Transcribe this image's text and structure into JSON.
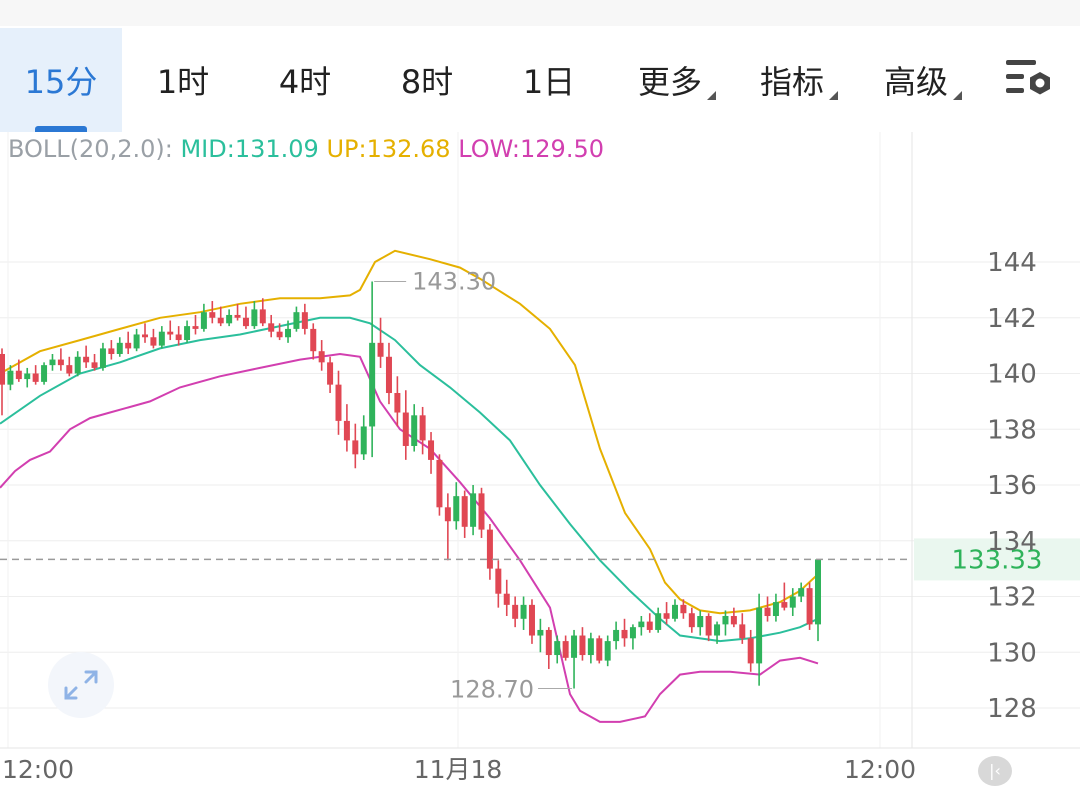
{
  "tabs": [
    {
      "label": "15分",
      "active": true
    },
    {
      "label": "1时",
      "active": false
    },
    {
      "label": "4时",
      "active": false
    },
    {
      "label": "8时",
      "active": false
    },
    {
      "label": "1日",
      "active": false
    }
  ],
  "menus": [
    "更多",
    "指标",
    "高级"
  ],
  "indicator": {
    "name": "BOLL(20,2.0):",
    "mid": "MID:131.09",
    "up": "UP:132.68",
    "low": "LOW:129.50"
  },
  "colors": {
    "up_candle": "#2fb35b",
    "down_candle": "#e04753",
    "mid_line": "#2bbf9c",
    "upper_band": "#e5b000",
    "lower_band": "#d23fb0",
    "price_tag": "#2fb35b",
    "accent": "#2b78d4"
  },
  "chart_data": {
    "type": "candlestick",
    "y_ticks": [
      "144",
      "142",
      "140",
      "138",
      "136",
      "134",
      "132",
      "130",
      "128"
    ],
    "ylim": [
      127.0,
      145.0
    ],
    "x_tick_labels": [
      "12:00",
      "11月18",
      "12:00"
    ],
    "grid": true,
    "current_price": "133.33",
    "high_label": "143.30",
    "low_label": "128.70",
    "high_value": 143.3,
    "low_value": 128.7,
    "candles": [
      [
        140.7,
        140.9,
        138.5,
        139.6
      ],
      [
        139.6,
        140.3,
        139.4,
        140.1
      ],
      [
        140.1,
        140.5,
        139.7,
        139.8
      ],
      [
        139.8,
        140.2,
        139.5,
        140.0
      ],
      [
        140.0,
        140.3,
        139.6,
        139.7
      ],
      [
        139.7,
        140.4,
        139.6,
        140.3
      ],
      [
        140.3,
        140.7,
        140.1,
        140.5
      ],
      [
        140.5,
        140.9,
        140.1,
        140.3
      ],
      [
        140.3,
        140.6,
        139.9,
        140.0
      ],
      [
        140.0,
        140.8,
        139.9,
        140.6
      ],
      [
        140.6,
        141.0,
        140.2,
        140.4
      ],
      [
        140.4,
        140.7,
        140.1,
        140.2
      ],
      [
        140.2,
        141.1,
        140.1,
        140.9
      ],
      [
        140.9,
        141.2,
        140.5,
        140.7
      ],
      [
        140.7,
        141.3,
        140.6,
        141.1
      ],
      [
        141.1,
        141.5,
        140.7,
        140.9
      ],
      [
        140.9,
        141.6,
        140.8,
        141.4
      ],
      [
        141.4,
        141.8,
        141.1,
        141.3
      ],
      [
        141.3,
        141.6,
        140.9,
        141.0
      ],
      [
        141.0,
        141.7,
        140.9,
        141.5
      ],
      [
        141.5,
        141.9,
        141.2,
        141.4
      ],
      [
        141.4,
        141.7,
        141.0,
        141.2
      ],
      [
        141.2,
        141.9,
        141.1,
        141.7
      ],
      [
        141.7,
        142.1,
        141.4,
        141.6
      ],
      [
        141.6,
        142.5,
        141.5,
        142.2
      ],
      [
        142.2,
        142.6,
        141.8,
        142.0
      ],
      [
        142.0,
        142.4,
        141.7,
        141.8
      ],
      [
        141.8,
        142.3,
        141.7,
        142.1
      ],
      [
        142.1,
        142.5,
        141.9,
        142.0
      ],
      [
        142.0,
        142.4,
        141.6,
        141.7
      ],
      [
        141.7,
        142.6,
        141.6,
        142.3
      ],
      [
        142.3,
        142.7,
        141.7,
        141.8
      ],
      [
        141.8,
        142.1,
        141.3,
        141.5
      ],
      [
        141.5,
        141.8,
        141.2,
        141.3
      ],
      [
        141.3,
        141.9,
        141.1,
        141.6
      ],
      [
        141.6,
        142.4,
        141.5,
        142.2
      ],
      [
        142.2,
        142.5,
        141.4,
        141.6
      ],
      [
        141.6,
        141.8,
        140.5,
        140.8
      ],
      [
        140.8,
        141.2,
        140.1,
        140.4
      ],
      [
        140.4,
        140.6,
        139.3,
        139.6
      ],
      [
        139.6,
        140.1,
        137.8,
        138.3
      ],
      [
        138.3,
        138.9,
        137.2,
        137.6
      ],
      [
        137.6,
        138.2,
        136.6,
        137.1
      ],
      [
        137.1,
        138.5,
        136.9,
        138.1
      ],
      [
        138.1,
        143.3,
        137.0,
        141.1
      ],
      [
        141.1,
        142.0,
        140.2,
        140.6
      ],
      [
        140.6,
        141.1,
        138.9,
        139.3
      ],
      [
        139.3,
        139.9,
        138.1,
        138.6
      ],
      [
        138.6,
        139.4,
        136.9,
        137.4
      ],
      [
        137.4,
        138.9,
        137.2,
        138.5
      ],
      [
        138.5,
        138.8,
        137.1,
        137.6
      ],
      [
        137.6,
        137.9,
        136.4,
        136.9
      ],
      [
        136.9,
        137.1,
        134.9,
        135.2
      ],
      [
        135.2,
        135.7,
        133.3,
        134.7
      ],
      [
        134.7,
        136.1,
        134.4,
        135.6
      ],
      [
        135.6,
        135.8,
        134.1,
        134.5
      ],
      [
        134.5,
        136.0,
        134.2,
        135.7
      ],
      [
        135.7,
        135.9,
        134.1,
        134.4
      ],
      [
        134.4,
        134.6,
        132.6,
        133.0
      ],
      [
        133.0,
        133.3,
        131.6,
        132.1
      ],
      [
        132.1,
        132.6,
        131.3,
        131.7
      ],
      [
        131.7,
        132.0,
        130.9,
        131.2
      ],
      [
        131.2,
        132.0,
        130.8,
        131.7
      ],
      [
        131.7,
        131.9,
        130.3,
        130.6
      ],
      [
        130.6,
        131.2,
        130.0,
        130.8
      ],
      [
        130.8,
        130.9,
        129.4,
        129.9
      ],
      [
        129.9,
        130.6,
        129.6,
        130.4
      ],
      [
        130.4,
        130.6,
        129.7,
        129.8
      ],
      [
        129.8,
        130.8,
        128.7,
        130.6
      ],
      [
        130.6,
        130.9,
        129.7,
        129.9
      ],
      [
        129.9,
        130.7,
        129.6,
        130.5
      ],
      [
        130.5,
        130.6,
        129.6,
        129.7
      ],
      [
        129.7,
        130.6,
        129.5,
        130.4
      ],
      [
        130.4,
        131.1,
        130.1,
        130.8
      ],
      [
        130.8,
        131.2,
        130.2,
        130.5
      ],
      [
        130.5,
        131.0,
        130.1,
        130.9
      ],
      [
        130.9,
        131.3,
        130.6,
        131.1
      ],
      [
        131.1,
        131.4,
        130.7,
        130.8
      ],
      [
        130.8,
        131.6,
        130.7,
        131.4
      ],
      [
        131.4,
        131.8,
        131.0,
        131.2
      ],
      [
        131.2,
        131.9,
        131.1,
        131.7
      ],
      [
        131.7,
        131.9,
        131.2,
        131.4
      ],
      [
        131.4,
        131.6,
        130.7,
        130.9
      ],
      [
        130.9,
        131.5,
        130.6,
        131.3
      ],
      [
        131.3,
        131.4,
        130.4,
        130.6
      ],
      [
        130.6,
        131.1,
        130.3,
        131.0
      ],
      [
        131.0,
        131.5,
        130.6,
        131.3
      ],
      [
        131.3,
        131.6,
        130.9,
        131.0
      ],
      [
        131.0,
        131.4,
        130.3,
        130.5
      ],
      [
        130.5,
        130.8,
        129.3,
        129.6
      ],
      [
        129.6,
        132.1,
        128.8,
        131.6
      ],
      [
        131.6,
        132.0,
        131.1,
        131.3
      ],
      [
        131.3,
        132.1,
        131.1,
        131.8
      ],
      [
        131.8,
        132.5,
        131.5,
        131.6
      ],
      [
        131.6,
        132.3,
        131.3,
        132.0
      ],
      [
        132.0,
        132.5,
        131.8,
        132.3
      ],
      [
        132.3,
        132.5,
        130.8,
        131.0
      ],
      [
        131.0,
        133.33,
        130.4,
        133.33
      ]
    ],
    "mid": [
      [
        0,
        138.2
      ],
      [
        40,
        139.2
      ],
      [
        80,
        140.0
      ],
      [
        120,
        140.4
      ],
      [
        160,
        140.9
      ],
      [
        200,
        141.2
      ],
      [
        240,
        141.4
      ],
      [
        280,
        141.7
      ],
      [
        320,
        142.0
      ],
      [
        350,
        142.0
      ],
      [
        370,
        141.8
      ],
      [
        395,
        141.2
      ],
      [
        420,
        140.3
      ],
      [
        450,
        139.5
      ],
      [
        480,
        138.6
      ],
      [
        510,
        137.6
      ],
      [
        540,
        136.0
      ],
      [
        570,
        134.6
      ],
      [
        600,
        133.3
      ],
      [
        630,
        132.2
      ],
      [
        660,
        131.2
      ],
      [
        680,
        130.6
      ],
      [
        720,
        130.4
      ],
      [
        750,
        130.5
      ],
      [
        780,
        130.7
      ],
      [
        800,
        130.9
      ],
      [
        818,
        131.2
      ]
    ],
    "upper": [
      [
        0,
        140.0
      ],
      [
        40,
        140.8
      ],
      [
        80,
        141.2
      ],
      [
        120,
        141.6
      ],
      [
        160,
        142.0
      ],
      [
        200,
        142.2
      ],
      [
        240,
        142.5
      ],
      [
        280,
        142.7
      ],
      [
        320,
        142.7
      ],
      [
        350,
        142.8
      ],
      [
        360,
        143.0
      ],
      [
        375,
        144.0
      ],
      [
        395,
        144.4
      ],
      [
        430,
        144.1
      ],
      [
        460,
        143.8
      ],
      [
        480,
        143.4
      ],
      [
        520,
        142.5
      ],
      [
        550,
        141.6
      ],
      [
        575,
        140.3
      ],
      [
        600,
        137.3
      ],
      [
        625,
        135.0
      ],
      [
        650,
        133.7
      ],
      [
        665,
        132.5
      ],
      [
        680,
        131.9
      ],
      [
        700,
        131.5
      ],
      [
        720,
        131.4
      ],
      [
        750,
        131.5
      ],
      [
        780,
        131.8
      ],
      [
        800,
        132.2
      ],
      [
        818,
        132.8
      ]
    ],
    "lower": [
      [
        0,
        135.9
      ],
      [
        15,
        136.5
      ],
      [
        30,
        136.9
      ],
      [
        50,
        137.2
      ],
      [
        70,
        138.0
      ],
      [
        90,
        138.4
      ],
      [
        110,
        138.6
      ],
      [
        150,
        139.0
      ],
      [
        180,
        139.5
      ],
      [
        220,
        139.9
      ],
      [
        260,
        140.2
      ],
      [
        300,
        140.5
      ],
      [
        340,
        140.7
      ],
      [
        360,
        140.6
      ],
      [
        380,
        139.0
      ],
      [
        400,
        138.0
      ],
      [
        430,
        137.3
      ],
      [
        460,
        136.1
      ],
      [
        490,
        134.8
      ],
      [
        520,
        133.3
      ],
      [
        550,
        131.6
      ],
      [
        570,
        128.5
      ],
      [
        580,
        127.9
      ],
      [
        600,
        127.5
      ],
      [
        620,
        127.5
      ],
      [
        645,
        127.7
      ],
      [
        660,
        128.5
      ],
      [
        680,
        129.2
      ],
      [
        700,
        129.3
      ],
      [
        730,
        129.3
      ],
      [
        760,
        129.2
      ],
      [
        780,
        129.7
      ],
      [
        800,
        129.8
      ],
      [
        818,
        129.6
      ]
    ]
  }
}
